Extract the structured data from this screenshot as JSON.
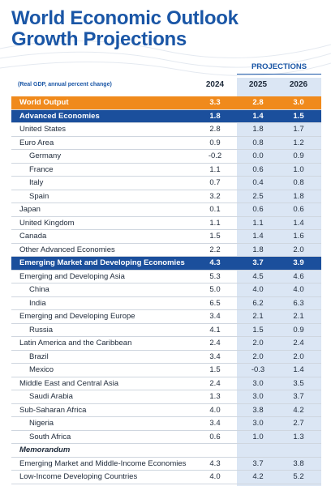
{
  "header": {
    "title_line1": "World Economic Outlook",
    "title_line2": "Growth Projections",
    "projections": "PROJECTIONS",
    "unit_note": "(Real GDP, annual percent change)",
    "years": [
      "2024",
      "2025",
      "2026"
    ]
  },
  "table": {
    "rows": [
      {
        "label": "World Output",
        "values": [
          "3.3",
          "2.8",
          "3.0"
        ],
        "highlight": "orange"
      },
      {
        "label": "Advanced Economies",
        "values": [
          "1.8",
          "1.4",
          "1.5"
        ],
        "highlight": "blue"
      },
      {
        "label": "United States",
        "values": [
          "2.8",
          "1.8",
          "1.7"
        ]
      },
      {
        "label": "Euro Area",
        "values": [
          "0.9",
          "0.8",
          "1.2"
        ]
      },
      {
        "label": "Germany",
        "values": [
          "-0.2",
          "0.0",
          "0.9"
        ],
        "indent": true
      },
      {
        "label": "France",
        "values": [
          "1.1",
          "0.6",
          "1.0"
        ],
        "indent": true
      },
      {
        "label": "Italy",
        "values": [
          "0.7",
          "0.4",
          "0.8"
        ],
        "indent": true
      },
      {
        "label": "Spain",
        "values": [
          "3.2",
          "2.5",
          "1.8"
        ],
        "indent": true
      },
      {
        "label": "Japan",
        "values": [
          "0.1",
          "0.6",
          "0.6"
        ]
      },
      {
        "label": "United Kingdom",
        "values": [
          "1.1",
          "1.1",
          "1.4"
        ]
      },
      {
        "label": "Canada",
        "values": [
          "1.5",
          "1.4",
          "1.6"
        ]
      },
      {
        "label": "Other Advanced Economies",
        "values": [
          "2.2",
          "1.8",
          "2.0"
        ]
      },
      {
        "label": "Emerging Market and Developing Economies",
        "values": [
          "4.3",
          "3.7",
          "3.9"
        ],
        "highlight": "blue"
      },
      {
        "label": "Emerging and Developing Asia",
        "values": [
          "5.3",
          "4.5",
          "4.6"
        ]
      },
      {
        "label": "China",
        "values": [
          "5.0",
          "4.0",
          "4.0"
        ],
        "indent": true
      },
      {
        "label": "India",
        "values": [
          "6.5",
          "6.2",
          "6.3"
        ],
        "indent": true
      },
      {
        "label": "Emerging and Developing Europe",
        "values": [
          "3.4",
          "2.1",
          "2.1"
        ]
      },
      {
        "label": "Russia",
        "values": [
          "4.1",
          "1.5",
          "0.9"
        ],
        "indent": true
      },
      {
        "label": "Latin America and the Caribbean",
        "values": [
          "2.4",
          "2.0",
          "2.4"
        ]
      },
      {
        "label": "Brazil",
        "values": [
          "3.4",
          "2.0",
          "2.0"
        ],
        "indent": true
      },
      {
        "label": "Mexico",
        "values": [
          "1.5",
          "-0.3",
          "1.4"
        ],
        "indent": true
      },
      {
        "label": "Middle East and Central Asia",
        "values": [
          "2.4",
          "3.0",
          "3.5"
        ]
      },
      {
        "label": "Saudi Arabia",
        "values": [
          "1.3",
          "3.0",
          "3.7"
        ],
        "indent": true
      },
      {
        "label": "Sub-Saharan Africa",
        "values": [
          "4.0",
          "3.8",
          "4.2"
        ]
      },
      {
        "label": "Nigeria",
        "values": [
          "3.4",
          "3.0",
          "2.7"
        ],
        "indent": true
      },
      {
        "label": "South Africa",
        "values": [
          "0.6",
          "1.0",
          "1.3"
        ],
        "indent": true
      },
      {
        "label": "Memorandum",
        "values": [],
        "italic": true
      },
      {
        "label": "Emerging Market and Middle-Income Economies",
        "values": [
          "4.3",
          "3.7",
          "3.8"
        ]
      },
      {
        "label": "Low-Income Developing Countries",
        "values": [
          "4.0",
          "4.2",
          "5.2"
        ]
      }
    ]
  }
}
